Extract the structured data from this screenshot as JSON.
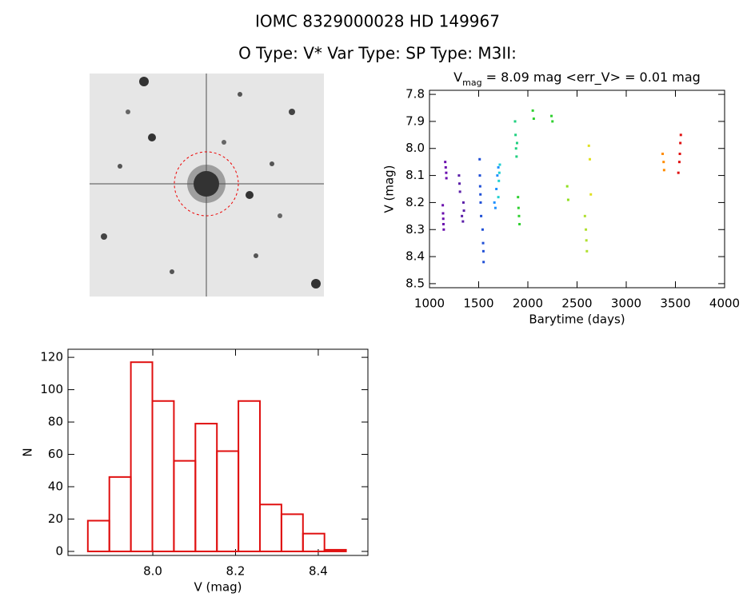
{
  "header": {
    "title": "IOMC 8329000028    HD 149967",
    "subtitle": "O Type: V*  Var Type:    SP Type: M3II:"
  },
  "chart_data": [
    {
      "type": "scatter",
      "title_parts": [
        "V",
        "mag",
        " = 8.09 mag <err_V> = 0.01 mag"
      ],
      "x_label": "Barytime (days)",
      "y_label": "V (mag)",
      "xlim": [
        1000,
        4000
      ],
      "xticks": [
        1000,
        1500,
        2000,
        2500,
        3000,
        3500,
        4000
      ],
      "ylim": [
        8.515,
        7.785
      ],
      "yticks": [
        {
          "value": 7.8,
          "label": "7.8"
        },
        7.9,
        {
          "value": 8,
          "label": "8.0"
        },
        8.1,
        8.2,
        8.3,
        8.4,
        8.5
      ],
      "series": [
        {
          "color": "#6a0dad",
          "x": [
            1135,
            1138,
            1140,
            1142,
            1145,
            1160,
            1165,
            1170,
            1172
          ],
          "values": [
            8.21,
            8.24,
            8.26,
            8.28,
            8.3,
            8.05,
            8.07,
            8.09,
            8.11
          ]
        },
        {
          "color": "#5b1fa8",
          "x": [
            1300,
            1305,
            1310,
            1330,
            1340,
            1345,
            1350
          ],
          "values": [
            8.1,
            8.13,
            8.16,
            8.25,
            8.27,
            8.2,
            8.23
          ]
        },
        {
          "color": "#1f4fd6",
          "x": [
            1510,
            1512,
            1515,
            1518,
            1520,
            1525,
            1540,
            1545,
            1548,
            1550
          ],
          "values": [
            8.04,
            8.1,
            8.14,
            8.17,
            8.2,
            8.25,
            8.3,
            8.35,
            8.38,
            8.42
          ]
        },
        {
          "color": "#1e90ff",
          "x": [
            1660,
            1670,
            1680,
            1690,
            1700
          ],
          "values": [
            8.2,
            8.22,
            8.15,
            8.1,
            8.07
          ]
        },
        {
          "color": "#20d0d0",
          "x": [
            1700,
            1705,
            1710,
            1715
          ],
          "values": [
            8.18,
            8.12,
            8.09,
            8.06
          ]
        },
        {
          "color": "#20d080",
          "x": [
            1870,
            1875,
            1880,
            1885,
            1890
          ],
          "values": [
            7.9,
            7.95,
            8.0,
            8.03,
            7.98
          ]
        },
        {
          "color": "#30d030",
          "x": [
            1900,
            1905,
            1910,
            1915,
            2050,
            2060,
            2240,
            2250
          ],
          "values": [
            8.18,
            8.22,
            8.25,
            8.28,
            7.86,
            7.89,
            7.88,
            7.9
          ]
        },
        {
          "color": "#90e020",
          "x": [
            2400,
            2410
          ],
          "values": [
            8.14,
            8.19
          ]
        },
        {
          "color": "#b0e030",
          "x": [
            2580,
            2590,
            2595,
            2600
          ],
          "values": [
            8.25,
            8.3,
            8.34,
            8.38
          ]
        },
        {
          "color": "#e0e020",
          "x": [
            2620,
            2630,
            2640
          ],
          "values": [
            7.99,
            8.04,
            8.17
          ]
        },
        {
          "color": "#ff8c00",
          "x": [
            3370,
            3380,
            3385
          ],
          "values": [
            8.02,
            8.05,
            8.08
          ]
        },
        {
          "color": "#e01010",
          "x": [
            3530,
            3540,
            3545,
            3550,
            3555
          ],
          "values": [
            8.09,
            8.05,
            8.02,
            7.98,
            7.95
          ]
        }
      ]
    },
    {
      "type": "histogram",
      "x_label": "V (mag)",
      "y_label": "N",
      "color": "#e01010",
      "bins": [
        7.843,
        7.895,
        7.947,
        7.999,
        8.051,
        8.103,
        8.155,
        8.207,
        8.259,
        8.311,
        8.363,
        8.415,
        8.467
      ],
      "values": [
        19,
        46,
        117,
        93,
        56,
        79,
        62,
        93,
        29,
        23,
        11,
        1
      ],
      "xlim": [
        7.795,
        8.52
      ],
      "xticks": [
        {
          "value": 8,
          "label": "8.0"
        },
        8.2,
        8.4
      ],
      "ylim": [
        -2.5,
        125
      ],
      "yticks": [
        0,
        20,
        40,
        60,
        80,
        100,
        120
      ]
    }
  ]
}
